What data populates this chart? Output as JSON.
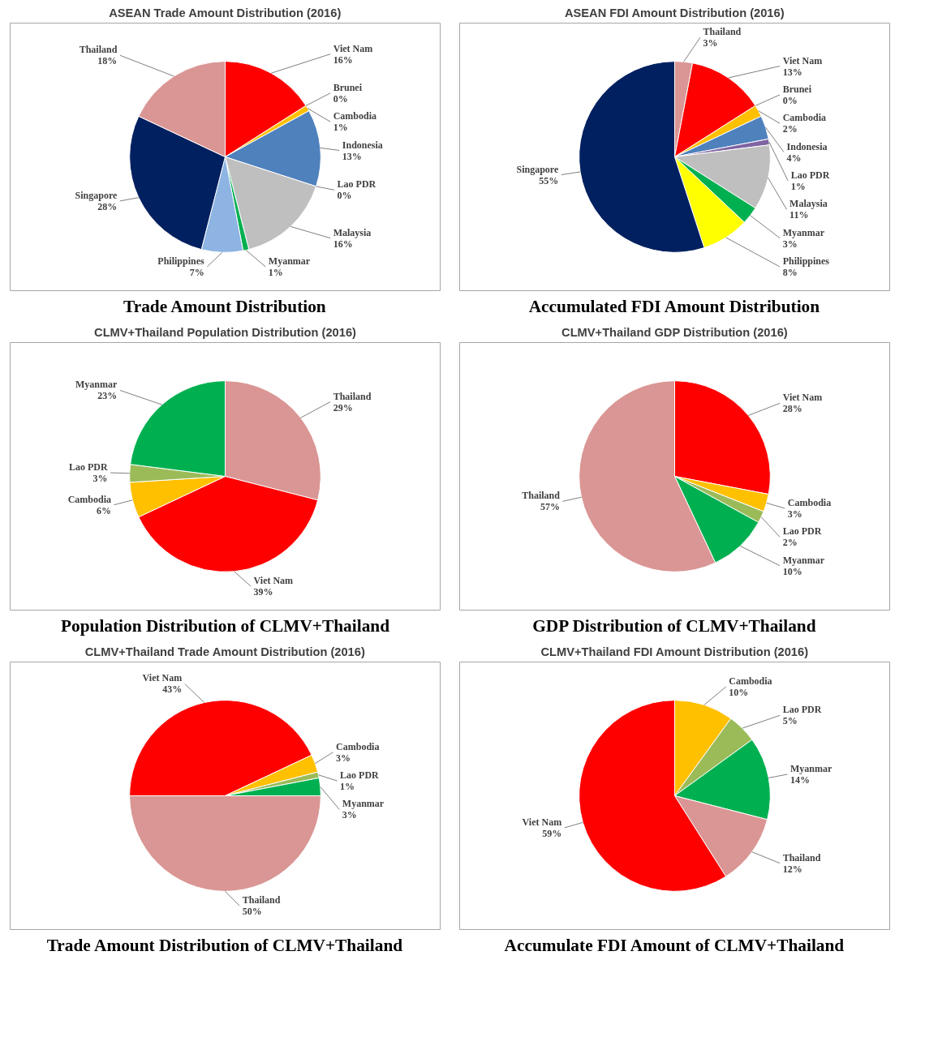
{
  "chart_data": [
    {
      "type": "pie",
      "title": "ASEAN Trade Amount Distribution (2016)",
      "annotations": [
        "Trade Amount Distribution"
      ],
      "categories": [
        "Viet Nam",
        "Brunei",
        "Cambodia",
        "Indonesia",
        "Lao PDR",
        "Malaysia",
        "Myanmar",
        "Philippines",
        "Singapore",
        "Thailand"
      ],
      "values": [
        16,
        0,
        1,
        13,
        0,
        16,
        1,
        7,
        28,
        18
      ],
      "value_labels": [
        "16%",
        "0%",
        "1%",
        "13%",
        "0%",
        "16%",
        "1%",
        "7%",
        "28%",
        "18%"
      ],
      "colors": [
        "#ff0000",
        "#4bacc6",
        "#ffc000",
        "#4f81bd",
        "#8064a2",
        "#bfbfbf",
        "#00b050",
        "#8db4e2",
        "#002060",
        "#da9694"
      ]
    },
    {
      "type": "pie",
      "title": "ASEAN FDI Amount Distribution (2016)",
      "annotations": [
        "Accumulated FDI Amount Distribution"
      ],
      "categories": [
        "Thailand",
        "Viet Nam",
        "Brunei",
        "Cambodia",
        "Indonesia",
        "Lao PDR",
        "Malaysia",
        "Myanmar",
        "Philippines",
        "Singapore"
      ],
      "values": [
        3,
        13,
        0,
        2,
        4,
        1,
        11,
        3,
        8,
        55
      ],
      "value_labels": [
        "3%",
        "13%",
        "0%",
        "2%",
        "4%",
        "1%",
        "11%",
        "3%",
        "8%",
        "55%"
      ],
      "colors": [
        "#da9694",
        "#ff0000",
        "#4bacc6",
        "#ffc000",
        "#4f81bd",
        "#8064a2",
        "#bfbfbf",
        "#00b050",
        "#ffff00",
        "#002060"
      ]
    },
    {
      "type": "pie",
      "title": "CLMV+Thailand Population Distribution (2016)",
      "annotations": [
        "Population Distribution of CLMV+Thailand"
      ],
      "categories": [
        "Thailand",
        "Viet Nam",
        "Cambodia",
        "Lao PDR",
        "Myanmar"
      ],
      "values": [
        29,
        39,
        6,
        3,
        23
      ],
      "value_labels": [
        "29%",
        "39%",
        "6%",
        "3%",
        "23%"
      ],
      "colors": [
        "#da9694",
        "#ff0000",
        "#ffc000",
        "#9bbb59",
        "#00b050"
      ]
    },
    {
      "type": "pie",
      "title": "CLMV+Thailand GDP Distribution (2016)",
      "annotations": [
        "GDP Distribution of CLMV+Thailand"
      ],
      "categories": [
        "Viet Nam",
        "Cambodia",
        "Lao PDR",
        "Myanmar",
        "Thailand"
      ],
      "values": [
        28,
        3,
        2,
        10,
        57
      ],
      "value_labels": [
        "28%",
        "3%",
        "2%",
        "10%",
        "57%"
      ],
      "colors": [
        "#ff0000",
        "#ffc000",
        "#9bbb59",
        "#00b050",
        "#da9694"
      ]
    },
    {
      "type": "pie",
      "title": "CLMV+Thailand Trade Amount Distribution (2016)",
      "annotations": [
        "Trade Amount Distribution of CLMV+Thailand"
      ],
      "categories": [
        "Viet Nam",
        "Cambodia",
        "Lao PDR",
        "Myanmar",
        "Thailand"
      ],
      "values": [
        43,
        3,
        1,
        3,
        50
      ],
      "value_labels": [
        "43%",
        "3%",
        "1%",
        "3%",
        "50%"
      ],
      "colors": [
        "#ff0000",
        "#ffc000",
        "#9bbb59",
        "#00b050",
        "#da9694"
      ]
    },
    {
      "type": "pie",
      "title": "CLMV+Thailand FDI Amount Distribution (2016)",
      "annotations": [
        "Accumulate FDI Amount of CLMV+Thailand"
      ],
      "categories": [
        "Cambodia",
        "Lao PDR",
        "Myanmar",
        "Thailand",
        "Viet Nam"
      ],
      "values": [
        10,
        5,
        14,
        12,
        59
      ],
      "value_labels": [
        "10%",
        "5%",
        "14%",
        "12%",
        "59%"
      ],
      "colors": [
        "#ffc000",
        "#9bbb59",
        "#00b050",
        "#da9694",
        "#ff0000"
      ]
    }
  ]
}
